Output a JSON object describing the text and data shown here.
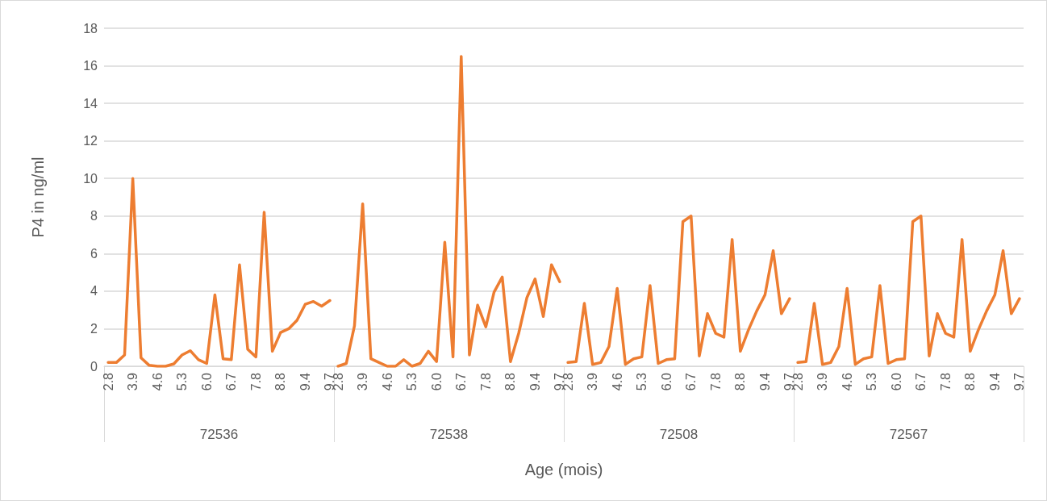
{
  "chart_data": {
    "type": "line",
    "xlabel": "Age (mois)",
    "ylabel": "P4 in ng/ml",
    "annotations": [
      "72536",
      "72538",
      "72508",
      "72567"
    ],
    "categories": [
      "2.8",
      null,
      null,
      "3.9",
      null,
      null,
      "4.6",
      null,
      null,
      "5.3",
      null,
      null,
      "6.0",
      null,
      null,
      "6.7",
      null,
      null,
      "7.8",
      null,
      null,
      "8.8",
      null,
      null,
      "9.4",
      null,
      null,
      "9.7",
      "2.8",
      null,
      null,
      "3.9",
      null,
      null,
      "4.6",
      null,
      null,
      "5.3",
      null,
      null,
      "6.0",
      null,
      null,
      "6.7",
      null,
      null,
      "7.8",
      null,
      null,
      "8.8",
      null,
      null,
      "9.4",
      null,
      null,
      "9.7",
      "2.8",
      null,
      null,
      "3.9",
      null,
      null,
      "4.6",
      null,
      null,
      "5.3",
      null,
      null,
      "6.0",
      null,
      null,
      "6.7",
      null,
      null,
      "7.8",
      null,
      null,
      "8.8",
      null,
      null,
      "9.4",
      null,
      null,
      "9.7",
      "2.8",
      null,
      null,
      "3.9",
      null,
      null,
      "4.6",
      null,
      null,
      "5.3",
      null,
      null,
      "6.0",
      null,
      null,
      "6.7",
      null,
      null,
      "7.8",
      null,
      null,
      "8.8",
      null,
      null,
      "9.4",
      null,
      null,
      "9.7"
    ],
    "series": [
      {
        "color": "#ed7d31",
        "values": [
          0.2,
          0.2,
          0.6,
          10.0,
          0.45,
          0.05,
          0.0,
          0.0,
          0.13,
          0.6,
          0.83,
          0.35,
          0.15,
          3.8,
          0.4,
          0.35,
          5.4,
          0.9,
          0.5,
          8.2,
          0.8,
          1.8,
          2.0,
          2.45,
          3.3,
          3.45,
          3.2,
          3.5,
          null,
          null,
          null,
          null,
          null,
          null,
          null,
          null,
          null,
          null,
          null,
          null,
          null,
          null,
          null,
          null,
          null,
          null,
          null,
          null,
          null,
          null,
          null,
          null,
          null,
          null,
          null,
          null,
          null,
          null,
          null,
          null,
          null,
          null,
          null,
          null,
          null,
          null,
          null,
          null,
          null,
          null,
          null,
          null,
          null,
          null,
          null,
          null,
          null,
          null,
          null,
          null,
          null,
          null,
          null,
          null,
          null,
          null,
          null,
          null,
          null,
          null,
          null,
          null,
          null,
          null,
          null,
          null,
          null,
          null,
          null,
          null,
          null,
          null,
          null,
          null,
          null,
          null,
          null,
          null,
          null,
          null,
          null,
          null
        ]
      },
      {
        "color": "#ed7d31",
        "values": [
          null,
          null,
          null,
          null,
          null,
          null,
          null,
          null,
          null,
          null,
          null,
          null,
          null,
          null,
          null,
          null,
          null,
          null,
          null,
          null,
          null,
          null,
          null,
          null,
          null,
          null,
          null,
          null,
          0.0,
          0.15,
          2.15,
          8.65,
          0.4,
          0.2,
          0.0,
          0.0,
          0.35,
          0.0,
          0.15,
          0.8,
          0.25,
          6.6,
          0.5,
          16.5,
          0.6,
          3.25,
          2.1,
          3.95,
          4.75,
          0.25,
          1.75,
          3.65,
          4.65,
          2.65,
          5.4,
          4.5,
          null,
          null,
          null,
          null,
          null,
          null,
          null,
          null,
          null,
          null,
          null,
          null,
          null,
          null,
          null,
          null,
          null,
          null,
          null,
          null,
          null,
          null,
          null,
          null,
          null,
          null,
          null,
          null,
          null,
          null,
          null,
          null,
          null,
          null,
          null,
          null,
          null,
          null,
          null,
          null,
          null,
          null,
          null,
          null,
          null,
          null,
          null,
          null,
          null,
          null,
          null,
          null,
          null,
          null,
          null,
          null
        ]
      },
      {
        "color": "#ed7d31",
        "values": [
          null,
          null,
          null,
          null,
          null,
          null,
          null,
          null,
          null,
          null,
          null,
          null,
          null,
          null,
          null,
          null,
          null,
          null,
          null,
          null,
          null,
          null,
          null,
          null,
          null,
          null,
          null,
          null,
          null,
          null,
          null,
          null,
          null,
          null,
          null,
          null,
          null,
          null,
          null,
          null,
          null,
          null,
          null,
          null,
          null,
          null,
          null,
          null,
          null,
          null,
          null,
          null,
          null,
          null,
          null,
          null,
          0.2,
          0.25,
          3.35,
          0.1,
          0.2,
          1.05,
          4.15,
          0.1,
          0.4,
          0.5,
          4.3,
          0.15,
          0.35,
          0.4,
          7.7,
          8.0,
          0.55,
          2.8,
          1.75,
          1.55,
          6.75,
          0.8,
          1.95,
          2.95,
          3.8,
          6.15,
          2.8,
          3.6,
          null,
          null,
          null,
          null,
          null,
          null,
          null,
          null,
          null,
          null,
          null,
          null,
          null,
          null,
          null,
          null,
          null,
          null,
          null,
          null,
          null,
          null,
          null,
          null,
          null,
          null,
          null,
          null
        ]
      },
      {
        "color": "#ed7d31",
        "values": [
          null,
          null,
          null,
          null,
          null,
          null,
          null,
          null,
          null,
          null,
          null,
          null,
          null,
          null,
          null,
          null,
          null,
          null,
          null,
          null,
          null,
          null,
          null,
          null,
          null,
          null,
          null,
          null,
          null,
          null,
          null,
          null,
          null,
          null,
          null,
          null,
          null,
          null,
          null,
          null,
          null,
          null,
          null,
          null,
          null,
          null,
          null,
          null,
          null,
          null,
          null,
          null,
          null,
          null,
          null,
          null,
          null,
          null,
          null,
          null,
          null,
          null,
          null,
          null,
          null,
          null,
          null,
          null,
          null,
          null,
          null,
          null,
          null,
          null,
          null,
          null,
          null,
          null,
          null,
          null,
          null,
          null,
          null,
          null,
          0.2,
          0.25,
          3.35,
          0.1,
          0.2,
          1.05,
          4.15,
          0.1,
          0.4,
          0.5,
          4.3,
          0.15,
          0.35,
          0.4,
          7.7,
          8.0,
          0.55,
          2.8,
          1.75,
          1.55,
          6.75,
          0.8,
          1.95,
          2.95,
          3.8,
          6.15,
          2.8,
          3.6
        ]
      }
    ],
    "ylim": [
      0,
      18
    ],
    "yticks": [
      0,
      2,
      4,
      6,
      8,
      10,
      12,
      14,
      16,
      18
    ],
    "grid": "y"
  }
}
